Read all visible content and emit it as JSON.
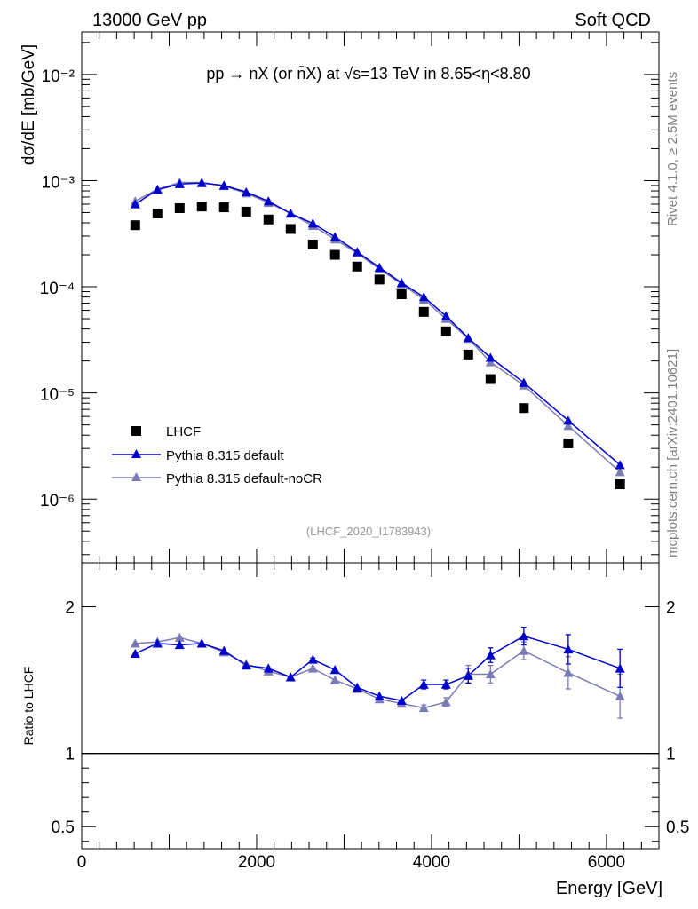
{
  "header": {
    "left": "13000 GeV pp",
    "right": "Soft QCD"
  },
  "side": {
    "top": "Rivet 4.1.0, ≥ 2.5M events",
    "bottom": "mcplots.cern.ch [arXiv:2401.10621]"
  },
  "chart_data": {
    "type": "scatter",
    "title": "pp → nX (or n̄X) at √s=13 TeV in 8.65<η<8.80",
    "analysis": "(LHCF_2020_I1783943)",
    "xlabel": "Energy [GeV]",
    "ylabel": "dσ/dE [mb/GeV]",
    "ratio_ylabel": "Ratio to LHCF",
    "xlim": [
      0,
      6600
    ],
    "ylim_log10": [
      -6.6,
      -1.6
    ],
    "ratio_ylim": [
      0.35,
      2.3
    ],
    "x_ticks": [
      0,
      2000,
      4000,
      6000
    ],
    "x_tick_labels": [
      "0",
      "2000",
      "4000",
      "6000"
    ],
    "y_tick_exponents": [
      -6,
      -5,
      -4,
      -3,
      -2
    ],
    "y_tick_labels": [
      "10⁻⁶",
      "10⁻⁵",
      "10⁻⁴",
      "10⁻³",
      "10⁻²"
    ],
    "ratio_ticks": [
      0.5,
      1,
      2
    ],
    "ratio_tick_labels": [
      "0.5",
      "1",
      "2"
    ],
    "x": [
      612,
      866,
      1120,
      1373,
      1627,
      1881,
      2135,
      2389,
      2643,
      2896,
      3150,
      3404,
      3658,
      3912,
      4166,
      4420,
      4674,
      5055,
      5563,
      6155
    ],
    "series": [
      {
        "name": "LHCF",
        "color": "#000000",
        "marker": "square",
        "values": [
          0.00038,
          0.00049,
          0.00055,
          0.00057,
          0.00056,
          0.00051,
          0.00043,
          0.00035,
          0.00025,
          0.0002,
          0.000155,
          0.000117,
          8.5e-05,
          5.8e-05,
          3.8e-05,
          2.3e-05,
          1.35e-05,
          7.2e-06,
          3.35e-06,
          1.38e-06
        ]
      },
      {
        "name": "Pythia 8.315 default",
        "color": "#0000cc",
        "marker": "triangle",
        "values": [
          0.0006,
          0.00082,
          0.00093,
          0.00095,
          0.0009,
          0.00078,
          0.00064,
          0.00049,
          0.000395,
          0.000295,
          0.000213,
          0.000152,
          0.000109,
          8e-05,
          5.3e-05,
          3.3e-05,
          2.15e-05,
          1.25e-05,
          5.5e-06,
          2.1e-06
        ],
        "ratio": [
          1.68,
          1.75,
          1.74,
          1.75,
          1.7,
          1.6,
          1.58,
          1.52,
          1.64,
          1.57,
          1.45,
          1.39,
          1.36,
          1.47,
          1.47,
          1.53,
          1.67,
          1.8,
          1.71,
          1.58
        ],
        "ratio_err": [
          0,
          0,
          0,
          0,
          0,
          0,
          0,
          0,
          0.01,
          0.01,
          0,
          0,
          0,
          0.03,
          0.03,
          0.05,
          0.05,
          0.06,
          0.1,
          0.13
        ]
      },
      {
        "name": "Pythia 8.315 default-noCR",
        "color": "#7b7bb6",
        "marker": "triangle",
        "values": [
          0.00064,
          0.00083,
          0.00096,
          0.00096,
          0.00089,
          0.00076,
          0.00062,
          0.00049,
          0.000375,
          0.00028,
          0.000207,
          0.000147,
          0.000106,
          7.6e-05,
          5e-05,
          3.25e-05,
          1.95e-05,
          1.18e-05,
          4.9e-06,
          1.8e-06
        ],
        "ratio": [
          1.75,
          1.76,
          1.79,
          1.75,
          1.69,
          1.61,
          1.56,
          1.52,
          1.58,
          1.5,
          1.44,
          1.37,
          1.34,
          1.31,
          1.35,
          1.54,
          1.54,
          1.7,
          1.55,
          1.39
        ],
        "ratio_err": [
          0,
          0,
          0,
          0,
          0,
          0,
          0,
          0,
          0,
          0,
          0,
          0.01,
          0.01,
          0.02,
          0.03,
          0.06,
          0.06,
          0.06,
          0.11,
          0.15
        ]
      }
    ],
    "legend": [
      "LHCF",
      "Pythia 8.315 default",
      "Pythia 8.315 default-noCR"
    ]
  }
}
